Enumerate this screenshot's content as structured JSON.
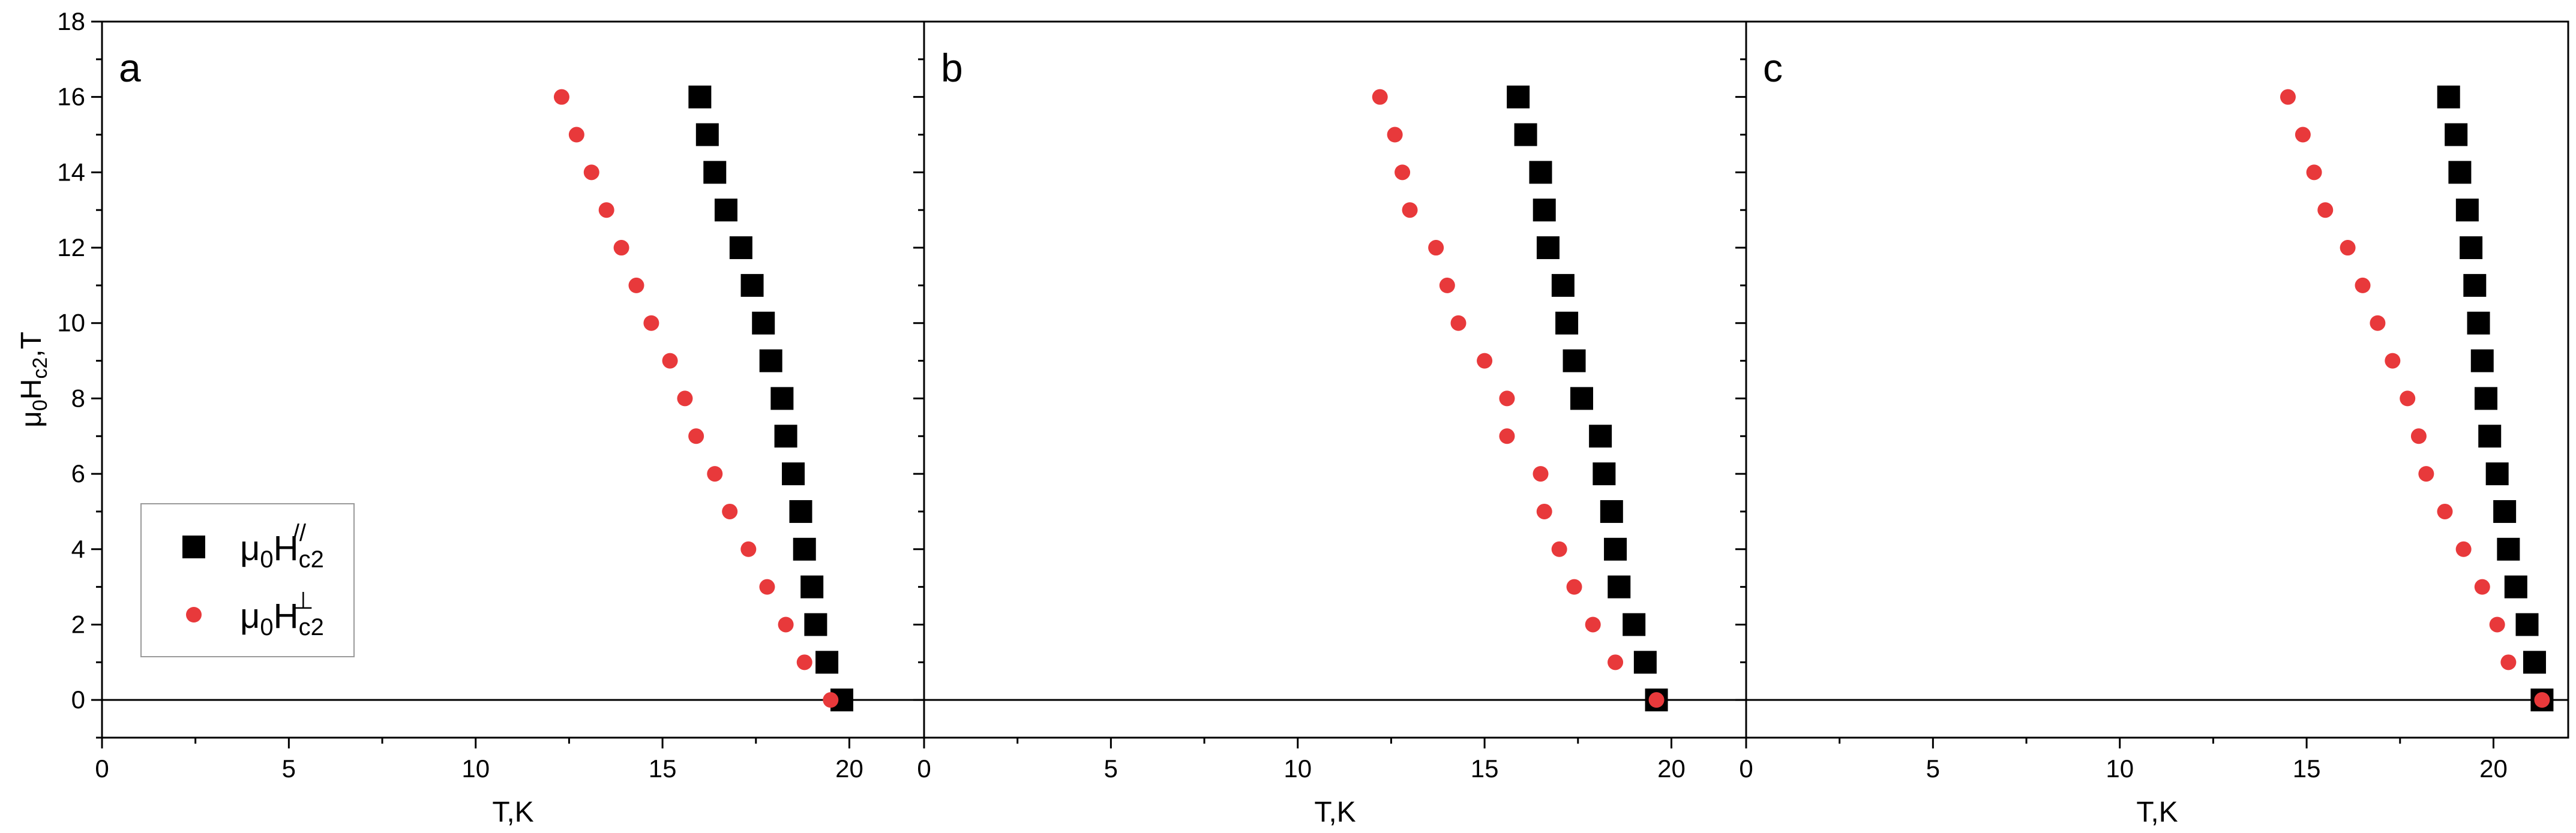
{
  "chart_data": {
    "type": "scatter",
    "ylabel_parts": {
      "base": "μ",
      "sub0": "0",
      "mid": "H",
      "sub1": "c2",
      "tail": ",T"
    },
    "xlabel": "T,K",
    "xlim": [
      0,
      22
    ],
    "ylim": [
      -1,
      18
    ],
    "xticks": [
      0,
      5,
      10,
      15,
      20
    ],
    "yticks": [
      0,
      2,
      4,
      6,
      8,
      10,
      12,
      14,
      16,
      18
    ],
    "reference_line_y": 0,
    "legend": {
      "placement": "lower-left of panel a",
      "entries": [
        {
          "series": 0,
          "base": "μ",
          "sub0": "0",
          "mid": "H",
          "sub1": "c2",
          "sup": "//"
        },
        {
          "series": 1,
          "base": "μ",
          "sub0": "0",
          "mid": "H",
          "sub1": "c2",
          "sup": "⊥"
        }
      ]
    },
    "series_styles": [
      {
        "marker": "square",
        "color": "#000000"
      },
      {
        "marker": "circle",
        "color": "#e8393b"
      }
    ],
    "panels": [
      {
        "label": "a",
        "series": [
          {
            "points": [
              [
                19.8,
                0
              ],
              [
                19.4,
                1
              ],
              [
                19.1,
                2
              ],
              [
                19.0,
                3
              ],
              [
                18.8,
                4
              ],
              [
                18.7,
                5
              ],
              [
                18.5,
                6
              ],
              [
                18.3,
                7
              ],
              [
                18.2,
                8
              ],
              [
                17.9,
                9
              ],
              [
                17.7,
                10
              ],
              [
                17.4,
                11
              ],
              [
                17.1,
                12
              ],
              [
                16.7,
                13
              ],
              [
                16.4,
                14
              ],
              [
                16.2,
                15
              ],
              [
                16.0,
                16
              ]
            ]
          },
          {
            "points": [
              [
                19.5,
                0
              ],
              [
                18.8,
                1
              ],
              [
                18.3,
                2
              ],
              [
                17.8,
                3
              ],
              [
                17.3,
                4
              ],
              [
                16.8,
                5
              ],
              [
                16.4,
                6
              ],
              [
                15.9,
                7
              ],
              [
                15.6,
                8
              ],
              [
                15.2,
                9
              ],
              [
                14.7,
                10
              ],
              [
                14.3,
                11
              ],
              [
                13.9,
                12
              ],
              [
                13.5,
                13
              ],
              [
                13.1,
                14
              ],
              [
                12.7,
                15
              ],
              [
                12.3,
                16
              ]
            ]
          }
        ]
      },
      {
        "label": "b",
        "series": [
          {
            "points": [
              [
                19.6,
                0
              ],
              [
                19.3,
                1
              ],
              [
                19.0,
                2
              ],
              [
                18.6,
                3
              ],
              [
                18.5,
                4
              ],
              [
                18.4,
                5
              ],
              [
                18.2,
                6
              ],
              [
                18.1,
                7
              ],
              [
                17.6,
                8
              ],
              [
                17.4,
                9
              ],
              [
                17.2,
                10
              ],
              [
                17.1,
                11
              ],
              [
                16.7,
                12
              ],
              [
                16.6,
                13
              ],
              [
                16.5,
                14
              ],
              [
                16.1,
                15
              ],
              [
                15.9,
                16
              ]
            ]
          },
          {
            "points": [
              [
                19.6,
                0
              ],
              [
                18.5,
                1
              ],
              [
                17.9,
                2
              ],
              [
                17.4,
                3
              ],
              [
                17.0,
                4
              ],
              [
                16.6,
                5
              ],
              [
                16.5,
                6
              ],
              [
                15.6,
                7
              ],
              [
                15.6,
                8
              ],
              [
                15.0,
                9
              ],
              [
                14.3,
                10
              ],
              [
                14.0,
                11
              ],
              [
                13.7,
                12
              ],
              [
                13.0,
                13
              ],
              [
                12.8,
                14
              ],
              [
                12.6,
                15
              ],
              [
                12.2,
                16
              ]
            ]
          }
        ]
      },
      {
        "label": "c",
        "series": [
          {
            "points": [
              [
                21.3,
                0
              ],
              [
                21.1,
                1
              ],
              [
                20.9,
                2
              ],
              [
                20.6,
                3
              ],
              [
                20.4,
                4
              ],
              [
                20.3,
                5
              ],
              [
                20.1,
                6
              ],
              [
                19.9,
                7
              ],
              [
                19.8,
                8
              ],
              [
                19.7,
                9
              ],
              [
                19.6,
                10
              ],
              [
                19.5,
                11
              ],
              [
                19.4,
                12
              ],
              [
                19.3,
                13
              ],
              [
                19.1,
                14
              ],
              [
                19.0,
                15
              ],
              [
                18.8,
                16
              ]
            ]
          },
          {
            "points": [
              [
                21.3,
                0
              ],
              [
                20.4,
                1
              ],
              [
                20.1,
                2
              ],
              [
                19.7,
                3
              ],
              [
                19.2,
                4
              ],
              [
                18.7,
                5
              ],
              [
                18.2,
                6
              ],
              [
                18.0,
                7
              ],
              [
                17.7,
                8
              ],
              [
                17.3,
                9
              ],
              [
                16.9,
                10
              ],
              [
                16.5,
                11
              ],
              [
                16.1,
                12
              ],
              [
                15.5,
                13
              ],
              [
                15.2,
                14
              ],
              [
                14.9,
                15
              ],
              [
                14.5,
                16
              ]
            ]
          }
        ]
      }
    ]
  }
}
